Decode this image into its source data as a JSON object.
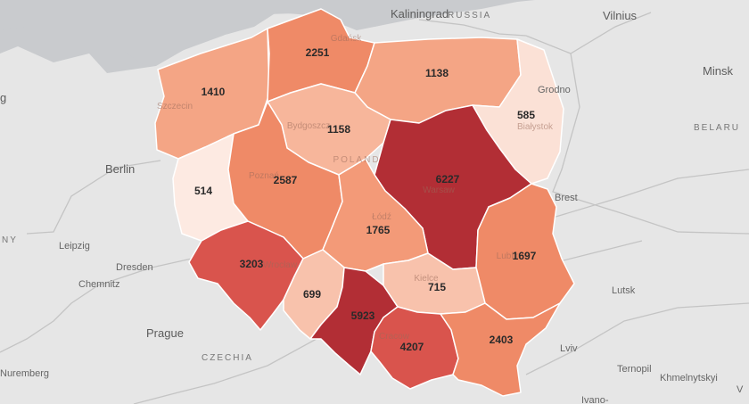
{
  "map": {
    "places": {
      "kaliningrad": "Kaliningrad",
      "russia": "RUSSIA",
      "vilnius": "Vilnius",
      "minsk": "Minsk",
      "belarus": "BELARU",
      "grodno": "Grodno",
      "brest": "Brest",
      "berlin": "Berlin",
      "germany": "NY",
      "leipzig": "Leipzig",
      "dresden": "Dresden",
      "chemnitz": "Chemnitz",
      "prague": "Prague",
      "czechia": "CZECHIA",
      "nuremberg": "Nuremberg",
      "lutsk": "Lutsk",
      "lviv": "Lviv",
      "ternopil": "Ternopil",
      "khmelnytskyi": "Khmelnytskyi",
      "ivano": "Ivano-",
      "left_edge": "g",
      "right_edge": "V"
    },
    "regions": [
      {
        "id": "zachodniopomorskie",
        "value": "1410",
        "color": "#f4a585"
      },
      {
        "id": "pomorskie",
        "value": "2251",
        "color": "#ef8a67"
      },
      {
        "id": "warminsko-mazurskie",
        "value": "1138",
        "color": "#f4a585"
      },
      {
        "id": "podlaskie",
        "value": "585",
        "color": "#fbe1d6"
      },
      {
        "id": "lubuskie",
        "value": "514",
        "color": "#fdeae2"
      },
      {
        "id": "kujawsko-pomorskie",
        "value": "1158",
        "color": "#f7b69b"
      },
      {
        "id": "wielkopolskie",
        "value": "2587",
        "color": "#ef8a67"
      },
      {
        "id": "mazowieckie",
        "value": "6227",
        "color": "#b22e35"
      },
      {
        "id": "lodzkie",
        "value": "1765",
        "color": "#f39a78"
      },
      {
        "id": "lubelskie",
        "value": "1697",
        "color": "#ef8a67"
      },
      {
        "id": "dolnoslaskie",
        "value": "3203",
        "color": "#d9544d"
      },
      {
        "id": "opolskie",
        "value": "699",
        "color": "#f8c2ac"
      },
      {
        "id": "slaskie",
        "value": "5923",
        "color": "#b22e35"
      },
      {
        "id": "swietokrzyskie",
        "value": "715",
        "color": "#f8c2ac"
      },
      {
        "id": "malopolskie",
        "value": "4207",
        "color": "#d9544d"
      },
      {
        "id": "podkarpackie",
        "value": "2403",
        "color": "#ef8a67"
      }
    ],
    "faint_cities": {
      "gdansk": "Gdańsk",
      "szczecin": "Szczecin",
      "bydgoszcz": "Bydgoszcz",
      "poland": "POLAND",
      "poznan": "Poznań",
      "warsaw": "Warsaw",
      "bialystok": "Białystok",
      "lodz": "Łódź",
      "lublin": "Lublin",
      "wroclaw": "Wrocław",
      "kielce": "Kielce",
      "krakow": "Cracow"
    }
  }
}
